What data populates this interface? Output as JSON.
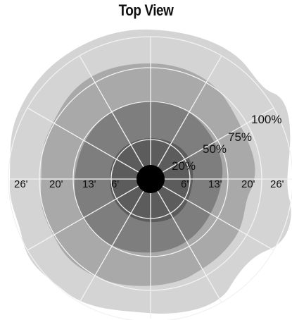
{
  "title": "Top View",
  "distance_labels": {
    "left": [
      "26'",
      "20'",
      "13'",
      "6'"
    ],
    "right": [
      "6'",
      "13'",
      "20'",
      "26'"
    ]
  },
  "coverage_labels": [
    "100%",
    "75%",
    "50%",
    "20%"
  ],
  "colors": {
    "zone_100": "#d4d4d4",
    "zone_75": "#a9a9a9",
    "zone_50": "#7e7e7e",
    "zone_20": "#5c5c5c",
    "center": "#000000",
    "grid": "#f2f2f2"
  }
}
